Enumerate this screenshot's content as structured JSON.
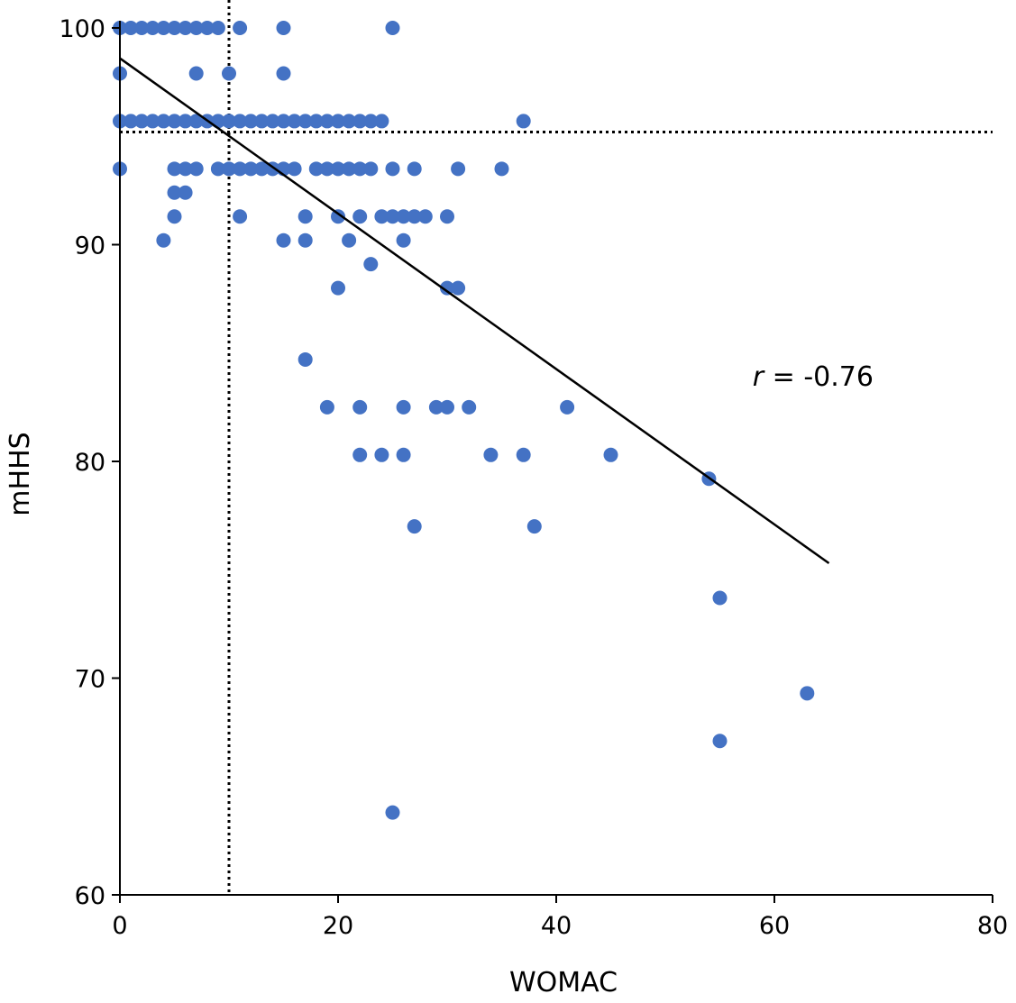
{
  "chart_data": {
    "type": "scatter",
    "title": "",
    "xlabel": "WOMAC",
    "ylabel": "mHHS",
    "xlim": [
      0,
      80
    ],
    "ylim": [
      60,
      100
    ],
    "xticks": [
      0,
      20,
      40,
      60,
      80
    ],
    "yticks": [
      60,
      70,
      80,
      90,
      100
    ],
    "grid": false,
    "point_color": "#4472C4",
    "series": [
      {
        "points": [
          [
            0,
            100
          ],
          [
            1,
            100
          ],
          [
            2,
            100
          ],
          [
            3,
            100
          ],
          [
            4,
            100
          ],
          [
            5,
            100
          ],
          [
            6,
            100
          ],
          [
            7,
            100
          ],
          [
            8,
            100
          ],
          [
            9,
            100
          ],
          [
            11,
            100
          ],
          [
            15,
            100
          ],
          [
            25,
            100
          ],
          [
            0,
            97.9
          ],
          [
            7,
            97.9
          ],
          [
            10,
            97.9
          ],
          [
            15,
            97.9
          ],
          [
            0,
            95.7
          ],
          [
            1,
            95.7
          ],
          [
            2,
            95.7
          ],
          [
            3,
            95.7
          ],
          [
            4,
            95.7
          ],
          [
            5,
            95.7
          ],
          [
            6,
            95.7
          ],
          [
            7,
            95.7
          ],
          [
            8,
            95.7
          ],
          [
            9,
            95.7
          ],
          [
            10,
            95.7
          ],
          [
            11,
            95.7
          ],
          [
            12,
            95.7
          ],
          [
            13,
            95.7
          ],
          [
            14,
            95.7
          ],
          [
            15,
            95.7
          ],
          [
            16,
            95.7
          ],
          [
            17,
            95.7
          ],
          [
            18,
            95.7
          ],
          [
            19,
            95.7
          ],
          [
            20,
            95.7
          ],
          [
            21,
            95.7
          ],
          [
            22,
            95.7
          ],
          [
            23,
            95.7
          ],
          [
            24,
            95.7
          ],
          [
            37,
            95.7
          ],
          [
            0,
            93.5
          ],
          [
            5,
            93.5
          ],
          [
            6,
            93.5
          ],
          [
            7,
            93.5
          ],
          [
            9,
            93.5
          ],
          [
            10,
            93.5
          ],
          [
            11,
            93.5
          ],
          [
            12,
            93.5
          ],
          [
            13,
            93.5
          ],
          [
            14,
            93.5
          ],
          [
            15,
            93.5
          ],
          [
            16,
            93.5
          ],
          [
            18,
            93.5
          ],
          [
            19,
            93.5
          ],
          [
            20,
            93.5
          ],
          [
            21,
            93.5
          ],
          [
            22,
            93.5
          ],
          [
            23,
            93.5
          ],
          [
            25,
            93.5
          ],
          [
            27,
            93.5
          ],
          [
            31,
            93.5
          ],
          [
            35,
            93.5
          ],
          [
            5,
            92.4
          ],
          [
            6,
            92.4
          ],
          [
            5,
            91.3
          ],
          [
            11,
            91.3
          ],
          [
            17,
            91.3
          ],
          [
            20,
            91.3
          ],
          [
            22,
            91.3
          ],
          [
            24,
            91.3
          ],
          [
            25,
            91.3
          ],
          [
            26,
            91.3
          ],
          [
            27,
            91.3
          ],
          [
            28,
            91.3
          ],
          [
            30,
            91.3
          ],
          [
            4,
            90.2
          ],
          [
            15,
            90.2
          ],
          [
            17,
            90.2
          ],
          [
            21,
            90.2
          ],
          [
            26,
            90.2
          ],
          [
            23,
            89.1
          ],
          [
            20,
            88
          ],
          [
            30,
            88
          ],
          [
            31,
            88
          ],
          [
            17,
            84.7
          ],
          [
            19,
            82.5
          ],
          [
            22,
            82.5
          ],
          [
            26,
            82.5
          ],
          [
            29,
            82.5
          ],
          [
            30,
            82.5
          ],
          [
            32,
            82.5
          ],
          [
            41,
            82.5
          ],
          [
            22,
            80.3
          ],
          [
            24,
            80.3
          ],
          [
            26,
            80.3
          ],
          [
            34,
            80.3
          ],
          [
            37,
            80.3
          ],
          [
            45,
            80.3
          ],
          [
            54,
            79.2
          ],
          [
            27,
            77
          ],
          [
            38,
            77
          ],
          [
            55,
            73.7
          ],
          [
            63,
            69.3
          ],
          [
            55,
            67.1
          ],
          [
            25,
            63.8
          ]
        ]
      }
    ],
    "regression_line": {
      "x": [
        0,
        65
      ],
      "y": [
        98.6,
        75.3
      ]
    },
    "reference_lines": {
      "x": 10,
      "y": 95.2
    },
    "annotation": {
      "symbol": "r",
      "text": " = -0.76",
      "x": 58,
      "y": 83.5
    }
  }
}
